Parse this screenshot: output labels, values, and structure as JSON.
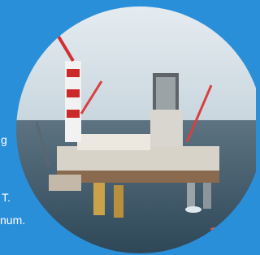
{
  "text_fragments": [
    "g",
    "T.",
    "num."
  ]
}
